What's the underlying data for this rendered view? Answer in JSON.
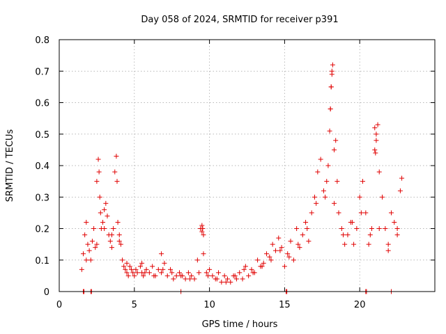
{
  "chart_data": {
    "type": "scatter",
    "title": "Day 058 of 2024, SRMTID for receiver p391",
    "xlabel": "GPS time / hours",
    "ylabel": "SRMTID / TECUs",
    "xlim": [
      0,
      25
    ],
    "ylim": [
      0,
      0.8
    ],
    "xticks": [
      0,
      5,
      10,
      15,
      20
    ],
    "xtick_labels": [
      "0",
      "5",
      "10",
      "15",
      "20"
    ],
    "yticks": [
      0,
      0.1,
      0.2,
      0.3,
      0.4,
      0.5,
      0.6,
      0.7,
      0.8
    ],
    "ytick_labels": [
      "0",
      "0.1",
      "0.2",
      "0.3",
      "0.4",
      "0.5",
      "0.6",
      "0.7",
      "0.8"
    ],
    "grid": true,
    "marker": "+",
    "marker_color": "#e00000",
    "series": [
      {
        "name": "SRMTID",
        "x": [
          1.5,
          1.6,
          1.7,
          1.8,
          1.9,
          2.0,
          2.1,
          2.2,
          2.3,
          2.4,
          2.5,
          2.6,
          2.65,
          2.7,
          2.75,
          2.8,
          2.9,
          3.0,
          3.1,
          3.2,
          3.3,
          3.4,
          3.5,
          3.6,
          3.7,
          3.8,
          3.85,
          3.9,
          4.0,
          4.1,
          4.2,
          4.3,
          4.4,
          4.5,
          4.6,
          4.7,
          4.8,
          4.9,
          5.0,
          5.2,
          5.4,
          5.5,
          5.6,
          5.8,
          6.0,
          6.2,
          6.4,
          6.6,
          6.8,
          7.0,
          7.2,
          7.4,
          7.6,
          7.8,
          8.0,
          8.2,
          8.4,
          8.6,
          8.8,
          9.0,
          9.2,
          9.4,
          9.5,
          9.6,
          9.8,
          10.0,
          10.2,
          10.4,
          10.6,
          10.8,
          11.0,
          11.2,
          11.4,
          11.6,
          11.8,
          12.0,
          12.2,
          12.4,
          12.6,
          12.8,
          13.0,
          13.2,
          13.4,
          13.6,
          13.8,
          14.0,
          14.2,
          14.4,
          14.6,
          14.8,
          15.0,
          15.2,
          15.4,
          15.6,
          15.8,
          16.0,
          16.2,
          16.4,
          16.6,
          16.8,
          17.0,
          17.2,
          17.4,
          17.6,
          17.8,
          17.9,
          18.0,
          18.05,
          18.1,
          18.15,
          18.2,
          18.3,
          18.4,
          18.5,
          18.6,
          18.8,
          19.0,
          19.2,
          19.4,
          19.6,
          19.8,
          20.0,
          20.2,
          20.4,
          20.6,
          20.8,
          21.0,
          21.1,
          21.2,
          21.3,
          21.5,
          21.7,
          21.9,
          22.1,
          22.3,
          22.5,
          22.7,
          22.8,
          1.6,
          1.65,
          2.1,
          2.15,
          8.1,
          15.1,
          15.15,
          20.4,
          20.45,
          22.1,
          1.8,
          2.5,
          3.0,
          3.5,
          4.0,
          4.5,
          5.1,
          5.7,
          6.3,
          6.9,
          7.5,
          8.1,
          8.7,
          9.3,
          9.9,
          10.5,
          11.1,
          11.7,
          12.3,
          12.9,
          13.5,
          14.1,
          14.7,
          15.3,
          15.9,
          16.5,
          17.1,
          17.7,
          18.3,
          18.9,
          19.5,
          20.1,
          20.7,
          21.3,
          21.9,
          22.5,
          9.5,
          9.55,
          9.6,
          6.8,
          5.5,
          18.05,
          18.1,
          18.15,
          21.0,
          21.05,
          21.1
        ],
        "y": [
          0.07,
          0.12,
          0.18,
          0.22,
          0.15,
          0.13,
          0.1,
          0.16,
          0.2,
          0.14,
          0.35,
          0.42,
          0.38,
          0.3,
          0.25,
          0.2,
          0.22,
          0.26,
          0.28,
          0.24,
          0.18,
          0.16,
          0.14,
          0.2,
          0.38,
          0.43,
          0.35,
          0.22,
          0.18,
          0.15,
          0.1,
          0.08,
          0.07,
          0.06,
          0.05,
          0.08,
          0.07,
          0.06,
          0.05,
          0.06,
          0.08,
          0.06,
          0.05,
          0.07,
          0.06,
          0.08,
          0.05,
          0.07,
          0.06,
          0.09,
          0.05,
          0.07,
          0.04,
          0.05,
          0.06,
          0.05,
          0.04,
          0.06,
          0.05,
          0.04,
          0.1,
          0.2,
          0.21,
          0.12,
          0.06,
          0.07,
          0.05,
          0.04,
          0.06,
          0.03,
          0.05,
          0.04,
          0.03,
          0.05,
          0.04,
          0.06,
          0.04,
          0.08,
          0.05,
          0.07,
          0.06,
          0.1,
          0.08,
          0.09,
          0.12,
          0.11,
          0.15,
          0.13,
          0.17,
          0.14,
          0.08,
          0.12,
          0.16,
          0.1,
          0.2,
          0.14,
          0.18,
          0.22,
          0.16,
          0.25,
          0.3,
          0.38,
          0.42,
          0.32,
          0.35,
          0.4,
          0.51,
          0.58,
          0.65,
          0.7,
          0.72,
          0.45,
          0.48,
          0.35,
          0.25,
          0.2,
          0.15,
          0.18,
          0.22,
          0.15,
          0.2,
          0.3,
          0.35,
          0.25,
          0.15,
          0.2,
          0.45,
          0.5,
          0.53,
          0.38,
          0.3,
          0.2,
          0.15,
          0.25,
          0.22,
          0.18,
          0.32,
          0.36,
          0.0,
          0.0,
          0.0,
          0.0,
          0.0,
          0.0,
          0.0,
          0.0,
          0.0,
          0.0,
          0.1,
          0.15,
          0.2,
          0.18,
          0.16,
          0.09,
          0.07,
          0.06,
          0.05,
          0.07,
          0.06,
          0.05,
          0.04,
          0.06,
          0.05,
          0.04,
          0.03,
          0.05,
          0.07,
          0.06,
          0.08,
          0.1,
          0.13,
          0.11,
          0.15,
          0.2,
          0.28,
          0.3,
          0.28,
          0.18,
          0.22,
          0.25,
          0.18,
          0.2,
          0.13,
          0.2,
          0.19,
          0.2,
          0.18,
          0.12,
          0.09,
          0.58,
          0.65,
          0.69,
          0.52,
          0.44,
          0.48
        ]
      }
    ]
  }
}
